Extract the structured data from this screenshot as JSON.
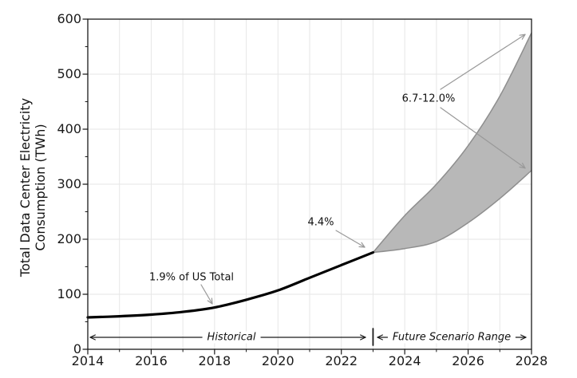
{
  "chart_data": {
    "type": "line",
    "title": "",
    "xlabel": "",
    "ylabel": "Total Data Center Electricity Consumption (TWh)",
    "ylabel_lines": [
      "Total Data Center Electricity",
      "Consumption (TWh)"
    ],
    "xlim": [
      2014,
      2028
    ],
    "ylim": [
      0,
      600
    ],
    "x_ticks": [
      2014,
      2016,
      2018,
      2020,
      2022,
      2024,
      2026,
      2028
    ],
    "y_ticks": [
      0,
      100,
      200,
      300,
      400,
      500,
      600
    ],
    "grid": "vertical gridline every year, horizontal gridline every 100 TWh",
    "legend": "none",
    "series": [
      {
        "name": "Historical",
        "style": "solid thick black line",
        "x": [
          2014,
          2015,
          2016,
          2017,
          2018,
          2019,
          2020,
          2021,
          2022,
          2023
        ],
        "values": [
          58,
          60,
          63,
          68,
          76,
          90,
          107,
          130,
          153,
          176
        ]
      },
      {
        "name": "Future scenario upper bound",
        "style": "gray band edge",
        "x": [
          2023,
          2024,
          2025,
          2026,
          2027,
          2028
        ],
        "values": [
          176,
          243,
          300,
          370,
          460,
          575
        ]
      },
      {
        "name": "Future scenario lower bound",
        "style": "gray band edge",
        "x": [
          2023,
          2024,
          2025,
          2026,
          2027,
          2028
        ],
        "values": [
          176,
          183,
          196,
          230,
          274,
          325
        ]
      }
    ],
    "band": {
      "between": [
        "Future scenario upper bound",
        "Future scenario lower bound"
      ],
      "fill": "#b8b8b8"
    },
    "annotations": [
      {
        "text": "1.9% of US Total",
        "target_x": 2018,
        "target_y": 76
      },
      {
        "text": "4.4%",
        "target_x": 2023,
        "target_y": 176
      },
      {
        "text": "6.7-12.0%",
        "targets": [
          {
            "x": 2028,
            "y": 575
          },
          {
            "x": 2028,
            "y": 325
          }
        ]
      }
    ],
    "span_labels": [
      {
        "text": "Historical",
        "from_x": 2014,
        "to_x": 2023
      },
      {
        "text": "Future Scenario Range",
        "from_x": 2023,
        "to_x": 2028
      }
    ],
    "colors": {
      "historical_line": "#000000",
      "band_fill": "#b8b8b8",
      "band_edge": "#8e8e8e",
      "annotation_arrow": "#999999",
      "span_arrow": "#1a1a1a",
      "grid": "#e6e6e6",
      "spine": "#1a1a1a",
      "text": "#111111",
      "background": "#ffffff"
    }
  }
}
